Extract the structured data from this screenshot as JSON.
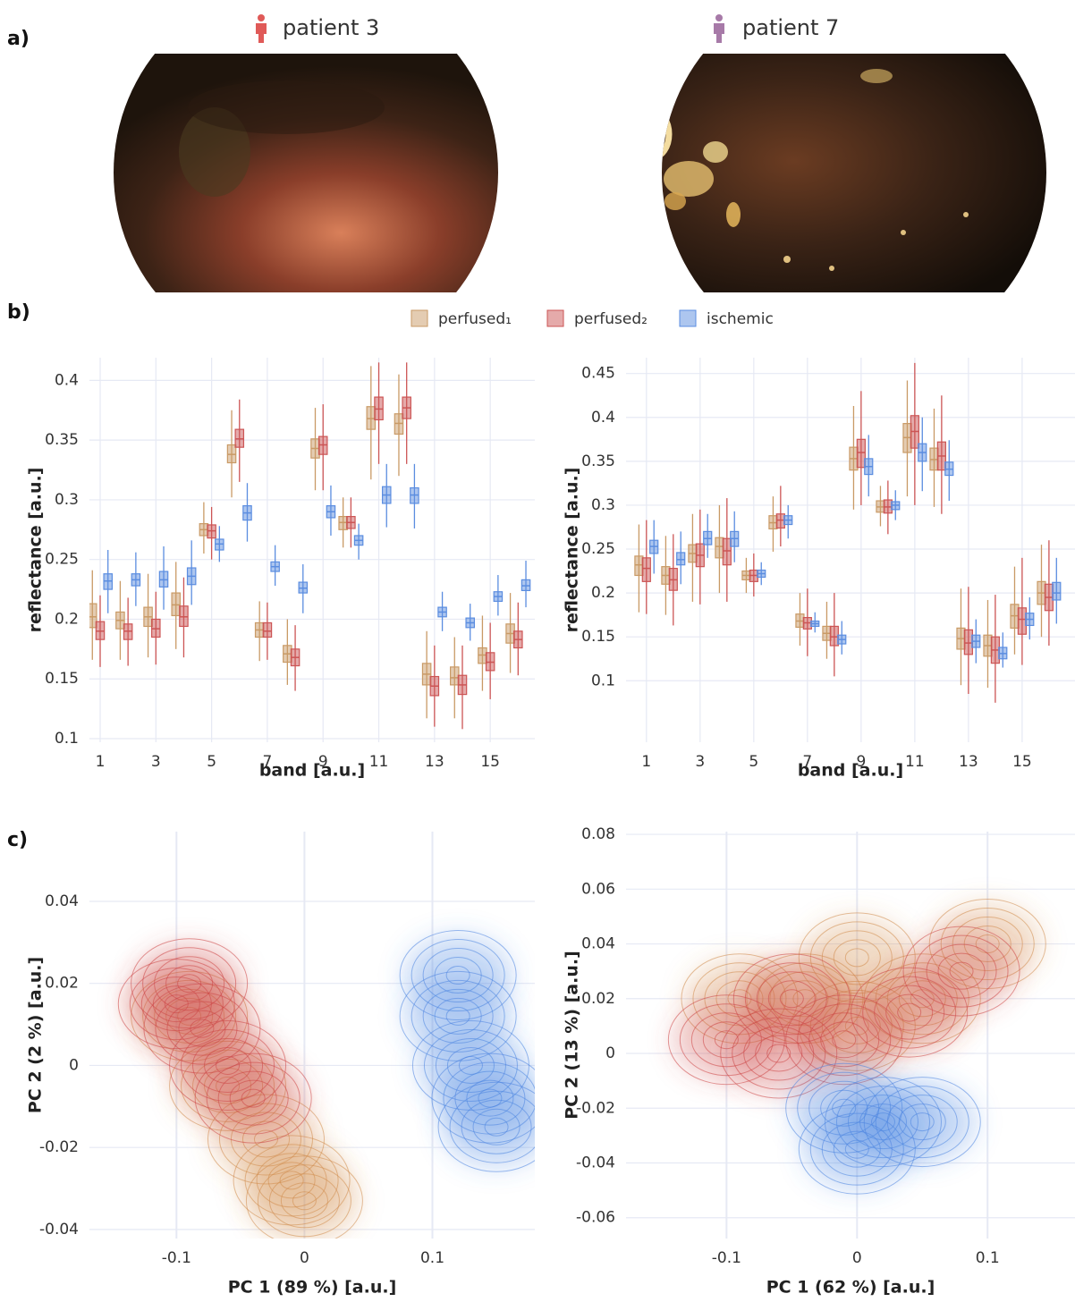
{
  "panel_labels": [
    "a)",
    "b)",
    "c)"
  ],
  "patients": [
    {
      "label": "patient 3",
      "color": "#e05a58"
    },
    {
      "label": "patient 7",
      "color": "#a77aa8"
    }
  ],
  "chart_data": [
    {
      "type": "box",
      "xlabel": "band [a.u.]",
      "ylabel": "reflectance [a.u.]",
      "x": [
        1,
        2,
        3,
        4,
        5,
        6,
        7,
        8,
        9,
        10,
        11,
        12,
        13,
        14,
        15,
        16
      ],
      "xlim": [
        0.615,
        16.6
      ],
      "ylim": [
        0.097,
        0.419
      ],
      "xticks": [
        1,
        3,
        5,
        7,
        9,
        11,
        13,
        15
      ],
      "yticks": [
        0.1,
        0.15,
        0.2,
        0.25,
        0.3,
        0.35,
        0.4
      ],
      "grid": true,
      "series": [
        {
          "name": "perfused₁",
          "color": "#c99a66",
          "values": [
            [
              0.166,
              0.193,
              0.202,
              0.213,
              0.241
            ],
            [
              0.166,
              0.192,
              0.199,
              0.206,
              0.232
            ],
            [
              0.168,
              0.194,
              0.202,
              0.21,
              0.238
            ],
            [
              0.175,
              0.203,
              0.212,
              0.222,
              0.248
            ],
            [
              0.255,
              0.27,
              0.275,
              0.28,
              0.298
            ],
            [
              0.302,
              0.331,
              0.338,
              0.346,
              0.375
            ],
            [
              0.165,
              0.185,
              0.191,
              0.197,
              0.215
            ],
            [
              0.145,
              0.164,
              0.171,
              0.178,
              0.2
            ],
            [
              0.308,
              0.335,
              0.343,
              0.351,
              0.377
            ],
            [
              0.26,
              0.275,
              0.281,
              0.286,
              0.302
            ],
            [
              0.317,
              0.359,
              0.368,
              0.378,
              0.412
            ],
            [
              0.32,
              0.355,
              0.364,
              0.372,
              0.405
            ],
            [
              0.117,
              0.145,
              0.154,
              0.163,
              0.19
            ],
            [
              0.117,
              0.145,
              0.151,
              0.16,
              0.185
            ],
            [
              0.14,
              0.163,
              0.17,
              0.176,
              0.203
            ],
            [
              0.155,
              0.18,
              0.188,
              0.196,
              0.222
            ]
          ]
        },
        {
          "name": "perfused₂",
          "color": "#cc5555",
          "values": [
            [
              0.16,
              0.183,
              0.19,
              0.198,
              0.22
            ],
            [
              0.161,
              0.183,
              0.19,
              0.196,
              0.218
            ],
            [
              0.162,
              0.185,
              0.192,
              0.2,
              0.223
            ],
            [
              0.168,
              0.194,
              0.202,
              0.211,
              0.235
            ],
            [
              0.25,
              0.268,
              0.274,
              0.279,
              0.294
            ],
            [
              0.315,
              0.344,
              0.351,
              0.359,
              0.384
            ],
            [
              0.166,
              0.185,
              0.19,
              0.197,
              0.214
            ],
            [
              0.14,
              0.161,
              0.168,
              0.175,
              0.195
            ],
            [
              0.308,
              0.338,
              0.346,
              0.353,
              0.38
            ],
            [
              0.26,
              0.276,
              0.281,
              0.286,
              0.302
            ],
            [
              0.33,
              0.367,
              0.376,
              0.386,
              0.415
            ],
            [
              0.33,
              0.368,
              0.377,
              0.386,
              0.415
            ],
            [
              0.11,
              0.136,
              0.144,
              0.152,
              0.178
            ],
            [
              0.108,
              0.137,
              0.145,
              0.153,
              0.178
            ],
            [
              0.133,
              0.157,
              0.164,
              0.172,
              0.197
            ],
            [
              0.153,
              0.176,
              0.183,
              0.19,
              0.214
            ]
          ]
        },
        {
          "name": "ischemic",
          "color": "#5b8de0",
          "values": [
            [
              0.205,
              0.225,
              0.232,
              0.238,
              0.258
            ],
            [
              0.211,
              0.228,
              0.233,
              0.238,
              0.256
            ],
            [
              0.208,
              0.227,
              0.233,
              0.24,
              0.261
            ],
            [
              0.212,
              0.229,
              0.236,
              0.243,
              0.266
            ],
            [
              0.248,
              0.258,
              0.263,
              0.267,
              0.278
            ],
            [
              0.265,
              0.283,
              0.289,
              0.295,
              0.314
            ],
            [
              0.228,
              0.24,
              0.244,
              0.248,
              0.262
            ],
            [
              0.205,
              0.222,
              0.226,
              0.231,
              0.246
            ],
            [
              0.27,
              0.285,
              0.29,
              0.295,
              0.312
            ],
            [
              0.25,
              0.262,
              0.266,
              0.27,
              0.28
            ],
            [
              0.277,
              0.297,
              0.304,
              0.311,
              0.33
            ],
            [
              0.276,
              0.297,
              0.304,
              0.31,
              0.33
            ],
            [
              0.19,
              0.202,
              0.206,
              0.21,
              0.223
            ],
            [
              0.182,
              0.193,
              0.197,
              0.201,
              0.213
            ],
            [
              0.203,
              0.215,
              0.219,
              0.223,
              0.237
            ],
            [
              0.21,
              0.224,
              0.228,
              0.233,
              0.249
            ]
          ]
        }
      ]
    },
    {
      "type": "box",
      "xlabel": "band [a.u.]",
      "ylabel": "reflectance [a.u.]",
      "x": [
        1,
        2,
        3,
        4,
        5,
        6,
        7,
        8,
        9,
        10,
        11,
        12,
        13,
        14,
        15,
        16
      ],
      "xlim": [
        0.24,
        16.97
      ],
      "ylim": [
        0.03,
        0.468
      ],
      "xticks": [
        1,
        3,
        5,
        7,
        9,
        11,
        13,
        15
      ],
      "yticks": [
        0.1,
        0.15,
        0.2,
        0.25,
        0.3,
        0.35,
        0.4,
        0.45
      ],
      "grid": true,
      "series": [
        {
          "color": "#c99a66",
          "values": [
            [
              0.178,
              0.22,
              0.232,
              0.242,
              0.278
            ],
            [
              0.175,
              0.21,
              0.22,
              0.23,
              0.265
            ],
            [
              0.19,
              0.235,
              0.245,
              0.255,
              0.29
            ],
            [
              0.2,
              0.24,
              0.253,
              0.263,
              0.3
            ],
            [
              0.2,
              0.215,
              0.22,
              0.225,
              0.24
            ],
            [
              0.247,
              0.273,
              0.28,
              0.288,
              0.31
            ],
            [
              0.14,
              0.161,
              0.168,
              0.176,
              0.2
            ],
            [
              0.125,
              0.146,
              0.154,
              0.162,
              0.19
            ],
            [
              0.295,
              0.34,
              0.353,
              0.366,
              0.413
            ],
            [
              0.276,
              0.292,
              0.298,
              0.305,
              0.322
            ],
            [
              0.31,
              0.36,
              0.377,
              0.393,
              0.442
            ],
            [
              0.298,
              0.34,
              0.352,
              0.365,
              0.41
            ],
            [
              0.095,
              0.136,
              0.148,
              0.16,
              0.205
            ],
            [
              0.092,
              0.128,
              0.14,
              0.152,
              0.192
            ],
            [
              0.13,
              0.16,
              0.174,
              0.187,
              0.23
            ],
            [
              0.15,
              0.187,
              0.2,
              0.213,
              0.255
            ]
          ]
        },
        {
          "color": "#cc5555",
          "values": [
            [
              0.176,
              0.213,
              0.228,
              0.24,
              0.283
            ],
            [
              0.163,
              0.203,
              0.215,
              0.228,
              0.267
            ],
            [
              0.187,
              0.23,
              0.243,
              0.256,
              0.295
            ],
            [
              0.19,
              0.232,
              0.248,
              0.262,
              0.308
            ],
            [
              0.196,
              0.213,
              0.22,
              0.226,
              0.245
            ],
            [
              0.253,
              0.274,
              0.283,
              0.29,
              0.322
            ],
            [
              0.128,
              0.159,
              0.166,
              0.172,
              0.205
            ],
            [
              0.105,
              0.14,
              0.15,
              0.162,
              0.2
            ],
            [
              0.3,
              0.343,
              0.36,
              0.375,
              0.43
            ],
            [
              0.267,
              0.291,
              0.298,
              0.306,
              0.328
            ],
            [
              0.3,
              0.365,
              0.384,
              0.402,
              0.462
            ],
            [
              0.29,
              0.34,
              0.356,
              0.372,
              0.425
            ],
            [
              0.085,
              0.13,
              0.143,
              0.158,
              0.207
            ],
            [
              0.075,
              0.12,
              0.135,
              0.15,
              0.198
            ],
            [
              0.118,
              0.153,
              0.17,
              0.183,
              0.24
            ],
            [
              0.14,
              0.18,
              0.195,
              0.21,
              0.26
            ]
          ]
        },
        {
          "color": "#5b8de0",
          "values": [
            [
              0.222,
              0.245,
              0.253,
              0.26,
              0.283
            ],
            [
              0.21,
              0.232,
              0.238,
              0.246,
              0.27
            ],
            [
              0.24,
              0.255,
              0.262,
              0.27,
              0.29
            ],
            [
              0.235,
              0.253,
              0.262,
              0.27,
              0.293
            ],
            [
              0.209,
              0.218,
              0.222,
              0.226,
              0.235
            ],
            [
              0.262,
              0.278,
              0.283,
              0.288,
              0.3
            ],
            [
              0.155,
              0.162,
              0.165,
              0.168,
              0.178
            ],
            [
              0.13,
              0.142,
              0.147,
              0.152,
              0.168
            ],
            [
              0.31,
              0.335,
              0.344,
              0.353,
              0.38
            ],
            [
              0.283,
              0.295,
              0.3,
              0.304,
              0.317
            ],
            [
              0.316,
              0.35,
              0.36,
              0.37,
              0.4
            ],
            [
              0.305,
              0.334,
              0.341,
              0.349,
              0.374
            ],
            [
              0.12,
              0.138,
              0.145,
              0.152,
              0.17
            ],
            [
              0.115,
              0.125,
              0.131,
              0.138,
              0.155
            ],
            [
              0.147,
              0.163,
              0.17,
              0.177,
              0.195
            ],
            [
              0.165,
              0.192,
              0.2,
              0.212,
              0.24
            ]
          ]
        }
      ]
    },
    {
      "type": "density",
      "xlabel": "PC 1 (89 %) [a.u.]",
      "ylabel": "PC 2 (2 %) [a.u.]",
      "xlim": [
        -0.168,
        0.18
      ],
      "ylim": [
        -0.0422,
        0.057
      ],
      "xticks": [
        -0.1,
        0,
        0.1
      ],
      "yticks": [
        -0.04,
        -0.02,
        0,
        0.02,
        0.04
      ],
      "grid": true,
      "series": [
        {
          "color": "#d08a4a",
          "x": [
            -0.09,
            -0.06,
            -0.03,
            -0.01,
            0.0
          ],
          "values": [
            0.012,
            -0.005,
            -0.018,
            -0.028,
            -0.033
          ]
        },
        {
          "color": "#cc4444",
          "x": [
            -0.1,
            -0.08,
            -0.06,
            -0.04,
            -0.09
          ],
          "values": [
            0.015,
            0.009,
            0.0,
            -0.008,
            0.02
          ]
        },
        {
          "color": "#4a84e0",
          "x": [
            0.12,
            0.12,
            0.13,
            0.145,
            0.15
          ],
          "values": [
            0.022,
            0.012,
            0.0,
            -0.008,
            -0.015
          ]
        }
      ]
    },
    {
      "type": "density",
      "xlabel": "PC 1 (62 %) [a.u.]",
      "ylabel": "PC 2 (13 %) [a.u.]",
      "xlim": [
        -0.177,
        0.167
      ],
      "ylim": [
        -0.0676,
        0.081
      ],
      "xticks": [
        -0.1,
        0,
        0.1
      ],
      "yticks": [
        -0.06,
        -0.04,
        -0.02,
        0,
        0.02,
        0.04,
        0.06,
        0.08
      ],
      "grid": true,
      "series": [
        {
          "color": "#d08a4a",
          "x": [
            -0.09,
            -0.04,
            0.0,
            0.05,
            0.1,
            0.0
          ],
          "values": [
            0.02,
            0.02,
            0.01,
            0.02,
            0.04,
            0.035
          ]
        },
        {
          "color": "#cc4444",
          "x": [
            -0.1,
            -0.06,
            -0.01,
            0.04,
            0.08,
            -0.05
          ],
          "values": [
            0.005,
            0.0,
            0.005,
            0.015,
            0.03,
            0.02
          ]
        },
        {
          "color": "#4a84e0",
          "x": [
            -0.01,
            0.02,
            0.05,
            0.0
          ],
          "values": [
            -0.02,
            -0.025,
            -0.025,
            -0.035
          ]
        }
      ]
    }
  ]
}
